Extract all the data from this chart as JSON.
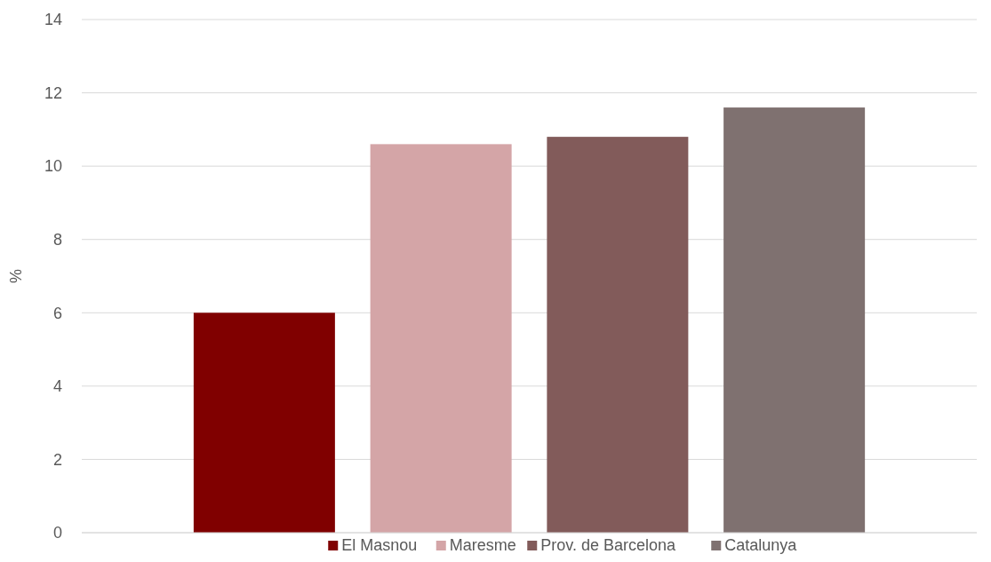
{
  "chart_data": {
    "type": "bar",
    "ylabel": "%",
    "categories": [
      null
    ],
    "series": [
      {
        "name": "El Masnou",
        "color": "#800000",
        "values": [
          6.0
        ]
      },
      {
        "name": "Maresme",
        "color": "#d4a5a7",
        "values": [
          10.6
        ]
      },
      {
        "name": "Prov. de Barcelona",
        "color": "#825b5a",
        "values": [
          10.8
        ]
      },
      {
        "name": "Catalunya",
        "color": "#7f7170",
        "values": [
          11.6
        ]
      }
    ],
    "ylim": [
      0,
      14
    ],
    "yticks": [
      0,
      2,
      4,
      6,
      8,
      10,
      12,
      14
    ],
    "grid": "y",
    "legend": "bottom"
  }
}
